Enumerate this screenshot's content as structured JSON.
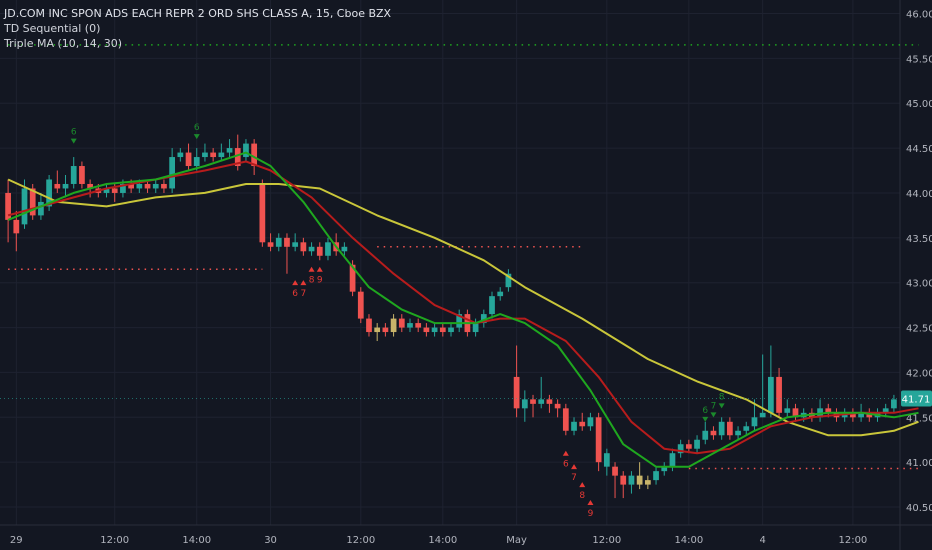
{
  "legend": {
    "title": "JD.COM INC SPON ADS EACH REPR 2 ORD SHS CLASS A, 15, Cboe BZX",
    "indicator1": "TD Sequential (0)",
    "indicator2": "Triple MA (10, 14, 30)"
  },
  "colors": {
    "background": "#131722",
    "grid": "#1e2230",
    "up": "#26a69a",
    "down": "#ef5350",
    "neutral": "#c8b46a",
    "ma_fast": "#1fa71f",
    "ma_mid": "#b71c1c",
    "ma_slow": "#c9c63a",
    "price_tag": "#26a69a",
    "td_buy": "#e53935",
    "td_sell": "#1b8a2c"
  },
  "chart_data": {
    "type": "candlestick",
    "ylim": [
      40.3,
      46.15
    ],
    "y_ticks": [
      "46.00",
      "45.50",
      "45.00",
      "44.50",
      "44.00",
      "43.50",
      "43.00",
      "42.50",
      "42.00",
      "41.50",
      "41.00",
      "40.50"
    ],
    "x_ticks": [
      {
        "bar": 1,
        "label": "29"
      },
      {
        "bar": 13,
        "label": "12:00"
      },
      {
        "bar": 23,
        "label": "14:00"
      },
      {
        "bar": 32,
        "label": "30"
      },
      {
        "bar": 43,
        "label": "12:00"
      },
      {
        "bar": 53,
        "label": "14:00"
      },
      {
        "bar": 62,
        "label": "May"
      },
      {
        "bar": 73,
        "label": "12:00"
      },
      {
        "bar": 83,
        "label": "14:00"
      },
      {
        "bar": 92,
        "label": "4"
      },
      {
        "bar": 103,
        "label": "12:00"
      }
    ],
    "last_price": "41.71",
    "candles": [
      [
        44.0,
        43.7,
        44.15,
        43.45,
        "d"
      ],
      [
        43.7,
        43.55,
        43.8,
        43.35,
        "d"
      ],
      [
        43.65,
        44.05,
        44.15,
        43.6,
        "u"
      ],
      [
        44.05,
        43.75,
        44.1,
        43.7,
        "d"
      ],
      [
        43.75,
        43.9,
        44.0,
        43.7,
        "u"
      ],
      [
        43.85,
        44.15,
        44.2,
        43.8,
        "u"
      ],
      [
        44.1,
        44.05,
        44.25,
        44.0,
        "d"
      ],
      [
        44.05,
        44.1,
        44.2,
        43.95,
        "u"
      ],
      [
        44.1,
        44.3,
        44.4,
        44.05,
        "u"
      ],
      [
        44.3,
        44.1,
        44.35,
        44.05,
        "d"
      ],
      [
        44.1,
        44.05,
        44.15,
        43.95,
        "d"
      ],
      [
        44.05,
        44.0,
        44.1,
        43.95,
        "d"
      ],
      [
        44.0,
        44.05,
        44.1,
        43.95,
        "u"
      ],
      [
        44.05,
        44.0,
        44.1,
        43.9,
        "d"
      ],
      [
        44.0,
        44.1,
        44.15,
        43.95,
        "u"
      ],
      [
        44.1,
        44.05,
        44.15,
        44.0,
        "d"
      ],
      [
        44.05,
        44.1,
        44.15,
        44.0,
        "u"
      ],
      [
        44.1,
        44.05,
        44.15,
        44.0,
        "d"
      ],
      [
        44.05,
        44.1,
        44.15,
        44.0,
        "u"
      ],
      [
        44.1,
        44.05,
        44.15,
        44.0,
        "d"
      ],
      [
        44.05,
        44.4,
        44.5,
        44.0,
        "u"
      ],
      [
        44.4,
        44.45,
        44.5,
        44.35,
        "u"
      ],
      [
        44.45,
        44.3,
        44.55,
        44.25,
        "d"
      ],
      [
        44.3,
        44.4,
        44.5,
        44.25,
        "u"
      ],
      [
        44.4,
        44.45,
        44.55,
        44.35,
        "u"
      ],
      [
        44.45,
        44.4,
        44.5,
        44.35,
        "d"
      ],
      [
        44.4,
        44.45,
        44.55,
        44.35,
        "u"
      ],
      [
        44.45,
        44.5,
        44.6,
        44.4,
        "u"
      ],
      [
        44.5,
        44.3,
        44.65,
        44.25,
        "d"
      ],
      [
        44.4,
        44.55,
        44.6,
        44.35,
        "u"
      ],
      [
        44.55,
        44.3,
        44.6,
        44.2,
        "d"
      ],
      [
        44.1,
        43.45,
        44.15,
        43.4,
        "d"
      ],
      [
        43.45,
        43.4,
        43.55,
        43.35,
        "d"
      ],
      [
        43.4,
        43.5,
        43.55,
        43.35,
        "u"
      ],
      [
        43.5,
        43.4,
        43.55,
        43.1,
        "d"
      ],
      [
        43.4,
        43.45,
        43.55,
        43.35,
        "u"
      ],
      [
        43.45,
        43.35,
        43.5,
        43.3,
        "d"
      ],
      [
        43.35,
        43.4,
        43.45,
        43.3,
        "u"
      ],
      [
        43.4,
        43.3,
        43.45,
        43.25,
        "d"
      ],
      [
        43.3,
        43.45,
        43.5,
        43.25,
        "u"
      ],
      [
        43.45,
        43.35,
        43.55,
        43.3,
        "d"
      ],
      [
        43.35,
        43.4,
        43.45,
        43.3,
        "u"
      ],
      [
        43.2,
        42.9,
        43.25,
        42.85,
        "d"
      ],
      [
        42.9,
        42.6,
        42.95,
        42.55,
        "d"
      ],
      [
        42.6,
        42.45,
        42.65,
        42.4,
        "d"
      ],
      [
        42.45,
        42.5,
        42.55,
        42.35,
        "n"
      ],
      [
        42.5,
        42.45,
        42.55,
        42.4,
        "d"
      ],
      [
        42.45,
        42.6,
        42.65,
        42.4,
        "n"
      ],
      [
        42.6,
        42.5,
        42.65,
        42.45,
        "d"
      ],
      [
        42.5,
        42.55,
        42.6,
        42.45,
        "u"
      ],
      [
        42.55,
        42.5,
        42.6,
        42.45,
        "d"
      ],
      [
        42.5,
        42.45,
        42.55,
        42.4,
        "d"
      ],
      [
        42.45,
        42.5,
        42.55,
        42.4,
        "u"
      ],
      [
        42.5,
        42.45,
        42.55,
        42.4,
        "d"
      ],
      [
        42.45,
        42.5,
        42.55,
        42.4,
        "u"
      ],
      [
        42.5,
        42.65,
        42.7,
        42.45,
        "u"
      ],
      [
        42.65,
        42.45,
        42.7,
        42.4,
        "d"
      ],
      [
        42.45,
        42.55,
        42.6,
        42.4,
        "u"
      ],
      [
        42.55,
        42.65,
        42.7,
        42.5,
        "u"
      ],
      [
        42.65,
        42.85,
        42.9,
        42.6,
        "u"
      ],
      [
        42.85,
        42.9,
        42.95,
        42.8,
        "u"
      ],
      [
        42.95,
        43.1,
        43.15,
        42.9,
        "u"
      ],
      [
        41.95,
        41.6,
        42.3,
        41.5,
        "d"
      ],
      [
        41.6,
        41.7,
        41.8,
        41.45,
        "u"
      ],
      [
        41.7,
        41.65,
        41.75,
        41.5,
        "d"
      ],
      [
        41.65,
        41.7,
        41.95,
        41.6,
        "u"
      ],
      [
        41.7,
        41.65,
        41.75,
        41.55,
        "d"
      ],
      [
        41.65,
        41.6,
        41.7,
        41.5,
        "d"
      ],
      [
        41.6,
        41.35,
        41.65,
        41.3,
        "d"
      ],
      [
        41.35,
        41.45,
        41.5,
        41.3,
        "u"
      ],
      [
        41.45,
        41.4,
        41.55,
        41.35,
        "d"
      ],
      [
        41.4,
        41.5,
        41.55,
        41.35,
        "u"
      ],
      [
        41.5,
        41.0,
        41.55,
        40.9,
        "d"
      ],
      [
        41.1,
        40.95,
        41.15,
        40.85,
        "u"
      ],
      [
        40.95,
        40.85,
        41.0,
        40.6,
        "d"
      ],
      [
        40.85,
        40.75,
        40.9,
        40.6,
        "d"
      ],
      [
        40.75,
        40.85,
        40.9,
        40.65,
        "u"
      ],
      [
        40.85,
        40.75,
        41.0,
        40.7,
        "n"
      ],
      [
        40.75,
        40.8,
        40.85,
        40.7,
        "n"
      ],
      [
        40.8,
        40.9,
        40.95,
        40.75,
        "u"
      ],
      [
        40.9,
        40.95,
        41.0,
        40.85,
        "u"
      ],
      [
        40.95,
        41.1,
        41.15,
        40.9,
        "u"
      ],
      [
        41.1,
        41.2,
        41.25,
        41.05,
        "u"
      ],
      [
        41.2,
        41.15,
        41.25,
        41.1,
        "d"
      ],
      [
        41.15,
        41.25,
        41.3,
        41.1,
        "u"
      ],
      [
        41.25,
        41.35,
        41.45,
        41.2,
        "u"
      ],
      [
        41.35,
        41.3,
        41.4,
        41.25,
        "d"
      ],
      [
        41.3,
        41.45,
        41.5,
        41.25,
        "u"
      ],
      [
        41.45,
        41.3,
        41.5,
        41.25,
        "d"
      ],
      [
        41.3,
        41.35,
        41.4,
        41.25,
        "u"
      ],
      [
        41.35,
        41.4,
        41.45,
        41.3,
        "u"
      ],
      [
        41.4,
        41.5,
        41.7,
        41.35,
        "u"
      ],
      [
        41.5,
        41.55,
        42.2,
        41.5,
        "u"
      ],
      [
        41.55,
        41.95,
        42.3,
        41.5,
        "u"
      ],
      [
        41.95,
        41.55,
        42.05,
        41.5,
        "d"
      ],
      [
        41.55,
        41.6,
        41.7,
        41.5,
        "u"
      ],
      [
        41.6,
        41.5,
        41.65,
        41.45,
        "d"
      ],
      [
        41.5,
        41.55,
        41.6,
        41.45,
        "u"
      ],
      [
        41.55,
        41.5,
        41.6,
        41.45,
        "d"
      ],
      [
        41.5,
        41.6,
        41.7,
        41.45,
        "u"
      ],
      [
        41.6,
        41.55,
        41.65,
        41.5,
        "d"
      ],
      [
        41.55,
        41.5,
        41.6,
        41.45,
        "d"
      ],
      [
        41.5,
        41.55,
        41.6,
        41.45,
        "u"
      ],
      [
        41.55,
        41.5,
        41.6,
        41.45,
        "d"
      ],
      [
        41.5,
        41.55,
        41.65,
        41.45,
        "u"
      ],
      [
        41.55,
        41.5,
        41.6,
        41.45,
        "d"
      ],
      [
        41.5,
        41.55,
        41.6,
        41.45,
        "u"
      ],
      [
        41.55,
        41.6,
        41.65,
        41.5,
        "u"
      ],
      [
        41.6,
        41.7,
        41.75,
        41.55,
        "u"
      ]
    ],
    "series": [
      {
        "key": "ma_slow",
        "points": [
          [
            0,
            44.15
          ],
          [
            6,
            43.9
          ],
          [
            12,
            43.85
          ],
          [
            18,
            43.95
          ],
          [
            24,
            44.0
          ],
          [
            29,
            44.1
          ],
          [
            33,
            44.1
          ],
          [
            38,
            44.05
          ],
          [
            45,
            43.75
          ],
          [
            52,
            43.5
          ],
          [
            58,
            43.25
          ],
          [
            63,
            42.95
          ],
          [
            70,
            42.6
          ],
          [
            78,
            42.15
          ],
          [
            84,
            41.9
          ],
          [
            90,
            41.7
          ],
          [
            95,
            41.45
          ],
          [
            100,
            41.3
          ],
          [
            104,
            41.3
          ],
          [
            108,
            41.35
          ],
          [
            111,
            41.45
          ]
        ]
      },
      {
        "key": "ma_mid",
        "points": [
          [
            0,
            43.75
          ],
          [
            4,
            43.85
          ],
          [
            8,
            43.95
          ],
          [
            12,
            44.05
          ],
          [
            18,
            44.15
          ],
          [
            24,
            44.25
          ],
          [
            29,
            44.35
          ],
          [
            32,
            44.25
          ],
          [
            37,
            43.95
          ],
          [
            42,
            43.5
          ],
          [
            47,
            43.1
          ],
          [
            52,
            42.75
          ],
          [
            57,
            42.55
          ],
          [
            60,
            42.6
          ],
          [
            63,
            42.6
          ],
          [
            68,
            42.35
          ],
          [
            72,
            41.95
          ],
          [
            76,
            41.45
          ],
          [
            80,
            41.15
          ],
          [
            84,
            41.1
          ],
          [
            88,
            41.15
          ],
          [
            93,
            41.4
          ],
          [
            98,
            41.5
          ],
          [
            104,
            41.55
          ],
          [
            108,
            41.55
          ],
          [
            111,
            41.6
          ]
        ]
      },
      {
        "key": "ma_fast",
        "points": [
          [
            0,
            43.7
          ],
          [
            4,
            43.85
          ],
          [
            8,
            44.0
          ],
          [
            12,
            44.1
          ],
          [
            18,
            44.15
          ],
          [
            24,
            44.3
          ],
          [
            29,
            44.45
          ],
          [
            32,
            44.3
          ],
          [
            36,
            43.9
          ],
          [
            40,
            43.4
          ],
          [
            44,
            42.95
          ],
          [
            48,
            42.7
          ],
          [
            52,
            42.55
          ],
          [
            57,
            42.55
          ],
          [
            60,
            42.65
          ],
          [
            63,
            42.55
          ],
          [
            67,
            42.3
          ],
          [
            71,
            41.8
          ],
          [
            75,
            41.2
          ],
          [
            79,
            40.95
          ],
          [
            83,
            40.95
          ],
          [
            87,
            41.15
          ],
          [
            91,
            41.35
          ],
          [
            95,
            41.5
          ],
          [
            100,
            41.55
          ],
          [
            104,
            41.55
          ],
          [
            108,
            41.5
          ],
          [
            111,
            41.55
          ]
        ]
      }
    ],
    "hlines": [
      {
        "price": 45.65,
        "from": 0,
        "to": 111,
        "color": "#1fa71f"
      },
      {
        "price": 43.15,
        "from": 0,
        "to": 31,
        "color": "#ef5350"
      },
      {
        "price": 43.4,
        "from": 45,
        "to": 70,
        "color": "#ef5350"
      },
      {
        "price": 40.93,
        "from": 83,
        "to": 111,
        "color": "#ef5350"
      }
    ],
    "td_labels": [
      {
        "bar": 8,
        "price": 44.65,
        "text": "6",
        "side": "above"
      },
      {
        "bar": 23,
        "price": 44.7,
        "text": "6",
        "side": "above"
      },
      {
        "bar": 35,
        "price": 42.95,
        "text": "6",
        "side": "below"
      },
      {
        "bar": 36,
        "price": 42.95,
        "text": "7",
        "side": "below"
      },
      {
        "bar": 37,
        "price": 43.1,
        "text": "8",
        "side": "below"
      },
      {
        "bar": 38,
        "price": 43.1,
        "text": "9",
        "side": "below"
      },
      {
        "bar": 68,
        "price": 41.05,
        "text": "6",
        "side": "below"
      },
      {
        "bar": 69,
        "price": 40.9,
        "text": "7",
        "side": "below"
      },
      {
        "bar": 70,
        "price": 40.7,
        "text": "8",
        "side": "below"
      },
      {
        "bar": 71,
        "price": 40.5,
        "text": "9",
        "side": "below"
      },
      {
        "bar": 85,
        "price": 41.55,
        "text": "6",
        "side": "above"
      },
      {
        "bar": 86,
        "price": 41.6,
        "text": "7",
        "side": "above"
      },
      {
        "bar": 87,
        "price": 41.7,
        "text": "8",
        "side": "above"
      }
    ]
  }
}
